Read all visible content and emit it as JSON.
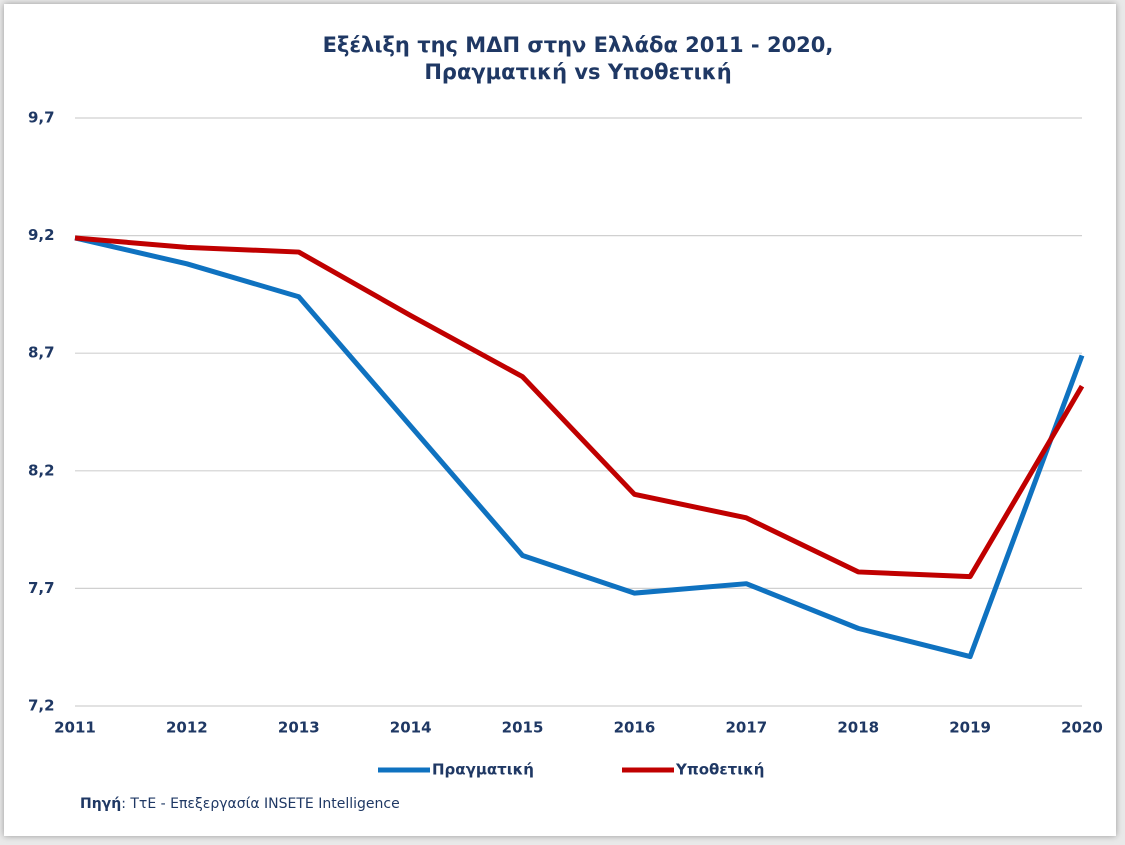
{
  "chart_data": {
    "type": "line",
    "title": [
      "Εξέλιξη της ΜΔΠ στην Ελλάδα 2011 - 2020,",
      "Πραγματική vs Υποθετική"
    ],
    "categories": [
      "2011",
      "2012",
      "2013",
      "2014",
      "2015",
      "2016",
      "2017",
      "2018",
      "2019",
      "2020"
    ],
    "series": [
      {
        "name": "Πραγματική",
        "color": "#0f72c0",
        "values": [
          9.19,
          9.08,
          8.94,
          8.39,
          7.84,
          7.68,
          7.72,
          7.53,
          7.41,
          8.69
        ]
      },
      {
        "name": "Υποθετική",
        "color": "#c00000",
        "values": [
          9.19,
          9.15,
          9.13,
          8.86,
          8.6,
          8.1,
          8.0,
          7.77,
          7.75,
          8.56
        ]
      }
    ],
    "ylim": [
      7.2,
      9.7
    ],
    "yticks": [
      {
        "value": 7.2,
        "label": "7,2"
      },
      {
        "value": 7.7,
        "label": "7,7"
      },
      {
        "value": 8.2,
        "label": "8,2"
      },
      {
        "value": 8.7,
        "label": "8,7"
      },
      {
        "value": 9.2,
        "label": "9,2"
      },
      {
        "value": 9.7,
        "label": "9,7"
      }
    ],
    "grid": true,
    "legend": "bottom",
    "source": {
      "label": "Πηγή",
      "text": ": ΤτΕ - Επεξεργασία INSETE Intelligence"
    }
  }
}
